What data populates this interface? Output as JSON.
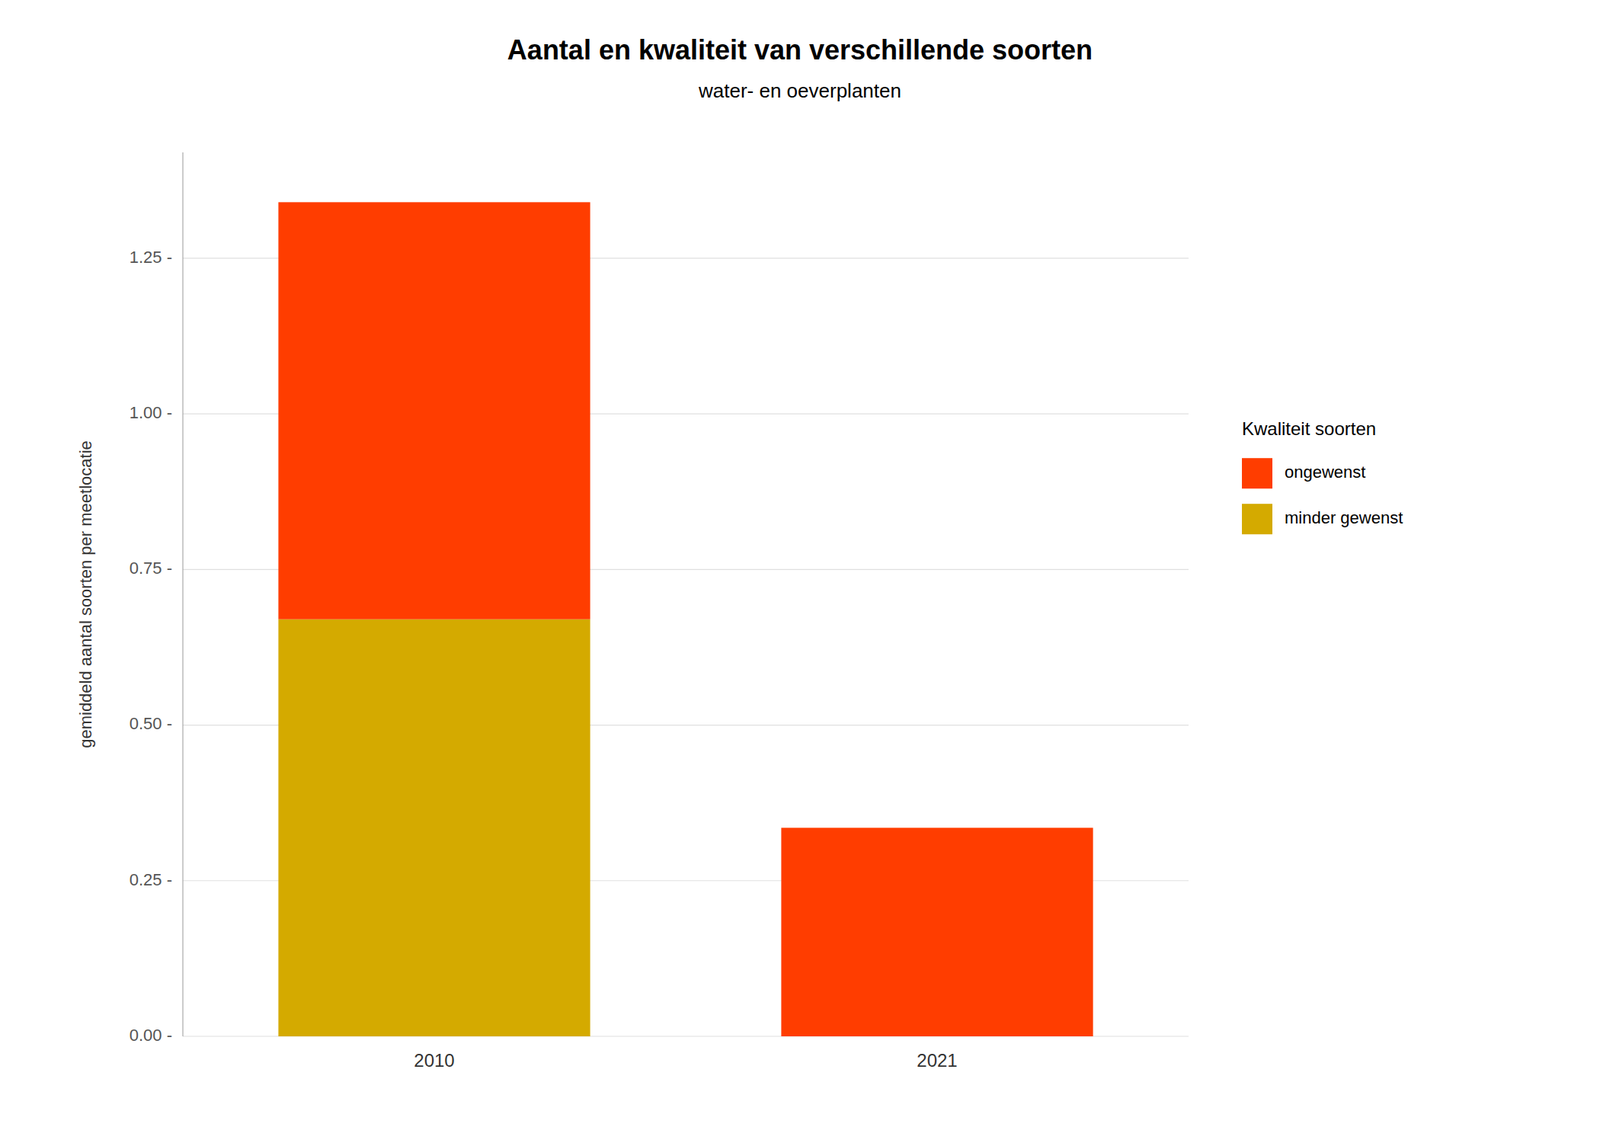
{
  "chart_data": {
    "type": "bar",
    "stacked": true,
    "title": "Aantal en kwaliteit van verschillende soorten",
    "subtitle": "water- en oeverplanten",
    "ylabel": "gemiddeld aantal soorten per meetlocatie",
    "legend_title": "Kwaliteit soorten",
    "categories": [
      "2010",
      "2021"
    ],
    "series": [
      {
        "name": "minder gewenst",
        "color": "#D4AA00",
        "values": [
          0.67,
          0.0
        ]
      },
      {
        "name": "ongewenst",
        "color": "#FF3D00",
        "values": [
          0.67,
          0.335
        ]
      }
    ],
    "ylim": [
      0,
      1.42
    ],
    "yticks": [
      {
        "value": 0.0,
        "label": "0.00 -"
      },
      {
        "value": 0.25,
        "label": "0.25 -"
      },
      {
        "value": 0.5,
        "label": "0.50 -"
      },
      {
        "value": 0.75,
        "label": "0.75 -"
      },
      {
        "value": 1.0,
        "label": "1.00 -"
      },
      {
        "value": 1.25,
        "label": "1.25 -"
      }
    ],
    "grid": true,
    "legend": "right"
  }
}
